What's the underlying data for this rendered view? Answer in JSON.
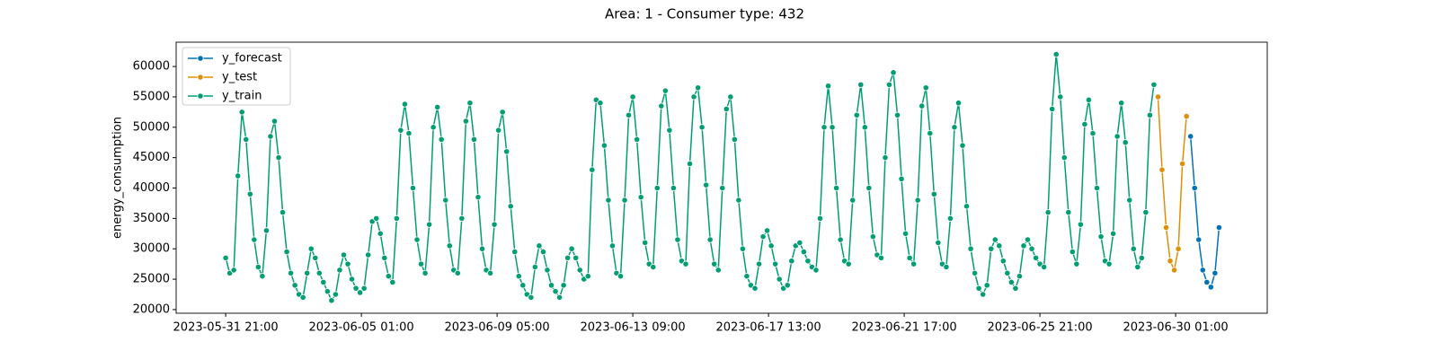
{
  "chart_data": {
    "type": "line",
    "title": "Area: 1 - Consumer type: 432",
    "y_label": "energy_consumption",
    "xlim": [
      "2023-05-30 08:30",
      "2023-07-02 20:30"
    ],
    "xticks": [
      "2023-05-31 21:00",
      "2023-06-05 01:00",
      "2023-06-09 05:00",
      "2023-06-13 09:00",
      "2023-06-17 13:00",
      "2023-06-21 17:00",
      "2023-06-25 21:00",
      "2023-06-30 01:00"
    ],
    "ylim": [
      19400,
      64000
    ],
    "yticks": [
      20000,
      25000,
      30000,
      35000,
      40000,
      45000,
      50000,
      55000,
      60000
    ],
    "grid": false,
    "legend": "upper left",
    "series": [
      {
        "name": "y_forecast",
        "color": "#0173b2",
        "x": [
          "2023-06-30 12:00",
          "2023-06-30 15:00",
          "2023-06-30 18:00",
          "2023-06-30 21:00",
          "2023-07-01 00:00",
          "2023-07-01 03:00",
          "2023-07-01 06:00",
          "2023-07-01 09:00"
        ],
        "values": [
          48500,
          40000,
          31500,
          26500,
          24500,
          23700,
          26000,
          33500
        ]
      },
      {
        "name": "y_test",
        "color": "#de8f05",
        "x": [
          "2023-06-29 12:00",
          "2023-06-29 15:00",
          "2023-06-29 18:00",
          "2023-06-29 21:00",
          "2023-06-30 00:00",
          "2023-06-30 03:00",
          "2023-06-30 06:00",
          "2023-06-30 09:00"
        ],
        "values": [
          55000,
          43000,
          33500,
          28000,
          26500,
          30000,
          44000,
          51800
        ]
      },
      {
        "name": "y_train",
        "color": "#029e73",
        "x": [
          "2023-05-31 21:00",
          "2023-06-01 00:00",
          "2023-06-01 03:00",
          "2023-06-01 06:00",
          "2023-06-01 09:00",
          "2023-06-01 12:00",
          "2023-06-01 15:00",
          "2023-06-01 18:00",
          "2023-06-01 21:00",
          "2023-06-02 00:00",
          "2023-06-02 03:00",
          "2023-06-02 06:00",
          "2023-06-02 09:00",
          "2023-06-02 12:00",
          "2023-06-02 15:00",
          "2023-06-02 18:00",
          "2023-06-02 21:00",
          "2023-06-03 00:00",
          "2023-06-03 03:00",
          "2023-06-03 06:00",
          "2023-06-03 09:00",
          "2023-06-03 12:00",
          "2023-06-03 15:00",
          "2023-06-03 18:00",
          "2023-06-03 21:00",
          "2023-06-04 00:00",
          "2023-06-04 03:00",
          "2023-06-04 06:00",
          "2023-06-04 09:00",
          "2023-06-04 12:00",
          "2023-06-04 15:00",
          "2023-06-04 18:00",
          "2023-06-04 21:00",
          "2023-06-05 00:00",
          "2023-06-05 03:00",
          "2023-06-05 06:00",
          "2023-06-05 09:00",
          "2023-06-05 12:00",
          "2023-06-05 15:00",
          "2023-06-05 18:00",
          "2023-06-05 21:00",
          "2023-06-06 00:00",
          "2023-06-06 03:00",
          "2023-06-06 06:00",
          "2023-06-06 09:00",
          "2023-06-06 12:00",
          "2023-06-06 15:00",
          "2023-06-06 18:00",
          "2023-06-06 21:00",
          "2023-06-07 00:00",
          "2023-06-07 03:00",
          "2023-06-07 06:00",
          "2023-06-07 09:00",
          "2023-06-07 12:00",
          "2023-06-07 15:00",
          "2023-06-07 18:00",
          "2023-06-07 21:00",
          "2023-06-08 00:00",
          "2023-06-08 03:00",
          "2023-06-08 06:00",
          "2023-06-08 09:00",
          "2023-06-08 12:00",
          "2023-06-08 15:00",
          "2023-06-08 18:00",
          "2023-06-08 21:00",
          "2023-06-09 00:00",
          "2023-06-09 03:00",
          "2023-06-09 06:00",
          "2023-06-09 09:00",
          "2023-06-09 12:00",
          "2023-06-09 15:00",
          "2023-06-09 18:00",
          "2023-06-09 21:00",
          "2023-06-10 00:00",
          "2023-06-10 03:00",
          "2023-06-10 06:00",
          "2023-06-10 09:00",
          "2023-06-10 12:00",
          "2023-06-10 15:00",
          "2023-06-10 18:00",
          "2023-06-10 21:00",
          "2023-06-11 00:00",
          "2023-06-11 03:00",
          "2023-06-11 06:00",
          "2023-06-11 09:00",
          "2023-06-11 12:00",
          "2023-06-11 15:00",
          "2023-06-11 18:00",
          "2023-06-11 21:00",
          "2023-06-12 00:00",
          "2023-06-12 03:00",
          "2023-06-12 06:00",
          "2023-06-12 09:00",
          "2023-06-12 12:00",
          "2023-06-12 15:00",
          "2023-06-12 18:00",
          "2023-06-12 21:00",
          "2023-06-13 00:00",
          "2023-06-13 03:00",
          "2023-06-13 06:00",
          "2023-06-13 09:00",
          "2023-06-13 12:00",
          "2023-06-13 15:00",
          "2023-06-13 18:00",
          "2023-06-13 21:00",
          "2023-06-14 00:00",
          "2023-06-14 03:00",
          "2023-06-14 06:00",
          "2023-06-14 09:00",
          "2023-06-14 12:00",
          "2023-06-14 15:00",
          "2023-06-14 18:00",
          "2023-06-14 21:00",
          "2023-06-15 00:00",
          "2023-06-15 03:00",
          "2023-06-15 06:00",
          "2023-06-15 09:00",
          "2023-06-15 12:00",
          "2023-06-15 15:00",
          "2023-06-15 18:00",
          "2023-06-15 21:00",
          "2023-06-16 00:00",
          "2023-06-16 03:00",
          "2023-06-16 06:00",
          "2023-06-16 09:00",
          "2023-06-16 12:00",
          "2023-06-16 15:00",
          "2023-06-16 18:00",
          "2023-06-16 21:00",
          "2023-06-17 00:00",
          "2023-06-17 03:00",
          "2023-06-17 06:00",
          "2023-06-17 09:00",
          "2023-06-17 12:00",
          "2023-06-17 15:00",
          "2023-06-17 18:00",
          "2023-06-17 21:00",
          "2023-06-18 00:00",
          "2023-06-18 03:00",
          "2023-06-18 06:00",
          "2023-06-18 09:00",
          "2023-06-18 12:00",
          "2023-06-18 15:00",
          "2023-06-18 18:00",
          "2023-06-18 21:00",
          "2023-06-19 00:00",
          "2023-06-19 03:00",
          "2023-06-19 06:00",
          "2023-06-19 09:00",
          "2023-06-19 12:00",
          "2023-06-19 15:00",
          "2023-06-19 18:00",
          "2023-06-19 21:00",
          "2023-06-20 00:00",
          "2023-06-20 03:00",
          "2023-06-20 06:00",
          "2023-06-20 09:00",
          "2023-06-20 12:00",
          "2023-06-20 15:00",
          "2023-06-20 18:00",
          "2023-06-20 21:00",
          "2023-06-21 00:00",
          "2023-06-21 03:00",
          "2023-06-21 06:00",
          "2023-06-21 09:00",
          "2023-06-21 12:00",
          "2023-06-21 15:00",
          "2023-06-21 18:00",
          "2023-06-21 21:00",
          "2023-06-22 00:00",
          "2023-06-22 03:00",
          "2023-06-22 06:00",
          "2023-06-22 09:00",
          "2023-06-22 12:00",
          "2023-06-22 15:00",
          "2023-06-22 18:00",
          "2023-06-22 21:00",
          "2023-06-23 00:00",
          "2023-06-23 03:00",
          "2023-06-23 06:00",
          "2023-06-23 09:00",
          "2023-06-23 12:00",
          "2023-06-23 15:00",
          "2023-06-23 18:00",
          "2023-06-23 21:00",
          "2023-06-24 00:00",
          "2023-06-24 03:00",
          "2023-06-24 06:00",
          "2023-06-24 09:00",
          "2023-06-24 12:00",
          "2023-06-24 15:00",
          "2023-06-24 18:00",
          "2023-06-24 21:00",
          "2023-06-25 00:00",
          "2023-06-25 03:00",
          "2023-06-25 06:00",
          "2023-06-25 09:00",
          "2023-06-25 12:00",
          "2023-06-25 15:00",
          "2023-06-25 18:00",
          "2023-06-25 21:00",
          "2023-06-26 00:00",
          "2023-06-26 03:00",
          "2023-06-26 06:00",
          "2023-06-26 09:00",
          "2023-06-26 12:00",
          "2023-06-26 15:00",
          "2023-06-26 18:00",
          "2023-06-26 21:00",
          "2023-06-27 00:00",
          "2023-06-27 03:00",
          "2023-06-27 06:00",
          "2023-06-27 09:00",
          "2023-06-27 12:00",
          "2023-06-27 15:00",
          "2023-06-27 18:00",
          "2023-06-27 21:00",
          "2023-06-28 00:00",
          "2023-06-28 03:00",
          "2023-06-28 06:00",
          "2023-06-28 09:00",
          "2023-06-28 12:00",
          "2023-06-28 15:00",
          "2023-06-28 18:00",
          "2023-06-28 21:00",
          "2023-06-29 00:00",
          "2023-06-29 03:00",
          "2023-06-29 06:00",
          "2023-06-29 09:00"
        ],
        "values": [
          28500,
          26000,
          26500,
          42000,
          52500,
          48000,
          39000,
          31500,
          27000,
          25500,
          33000,
          48500,
          51000,
          45000,
          36000,
          29500,
          26000,
          24000,
          22500,
          22000,
          26000,
          30000,
          28500,
          26000,
          24500,
          23000,
          21500,
          22500,
          26500,
          29000,
          27500,
          25000,
          23500,
          22800,
          23500,
          29000,
          34500,
          35000,
          32500,
          28500,
          25500,
          24500,
          35000,
          49500,
          53800,
          49000,
          40000,
          31500,
          27500,
          26000,
          34000,
          50000,
          53300,
          48000,
          38000,
          30500,
          26500,
          26000,
          35000,
          51000,
          54000,
          48000,
          38500,
          30000,
          26500,
          26000,
          34000,
          49500,
          52500,
          46000,
          37000,
          29500,
          25500,
          24000,
          22500,
          22000,
          27000,
          30500,
          29500,
          26500,
          24000,
          23000,
          22000,
          24000,
          28500,
          30000,
          28500,
          26500,
          25000,
          25500,
          43000,
          54500,
          54000,
          47000,
          38000,
          30500,
          26000,
          25500,
          38000,
          52000,
          55000,
          48000,
          38500,
          31000,
          27500,
          27000,
          40000,
          53500,
          56000,
          49500,
          40000,
          31500,
          28000,
          27500,
          44000,
          55000,
          56500,
          50000,
          40500,
          31500,
          27500,
          26500,
          40000,
          53000,
          55000,
          48000,
          38000,
          30000,
          25500,
          24000,
          23500,
          27500,
          32000,
          33000,
          30500,
          27500,
          25000,
          23500,
          24000,
          28000,
          30500,
          31000,
          29500,
          28000,
          27000,
          26500,
          35000,
          50000,
          56800,
          50000,
          40000,
          31500,
          28000,
          27500,
          38000,
          52000,
          57000,
          50000,
          40000,
          32000,
          29000,
          28500,
          45000,
          57000,
          59000,
          52000,
          41500,
          32500,
          28500,
          27500,
          38000,
          53500,
          56500,
          49000,
          39000,
          31000,
          27500,
          27000,
          35000,
          50000,
          54000,
          47000,
          37000,
          30000,
          26000,
          23500,
          22500,
          24000,
          30000,
          31500,
          30500,
          28000,
          26000,
          24500,
          23500,
          25500,
          30500,
          31500,
          30000,
          28500,
          27500,
          27000,
          36000,
          53000,
          62000,
          55000,
          45000,
          36000,
          29500,
          27500,
          34000,
          50500,
          54500,
          49000,
          40000,
          32000,
          28000,
          27500,
          32500,
          48500,
          54000,
          47500,
          38000,
          30000,
          27000,
          28500,
          36000,
          52000,
          57000
        ]
      }
    ]
  }
}
